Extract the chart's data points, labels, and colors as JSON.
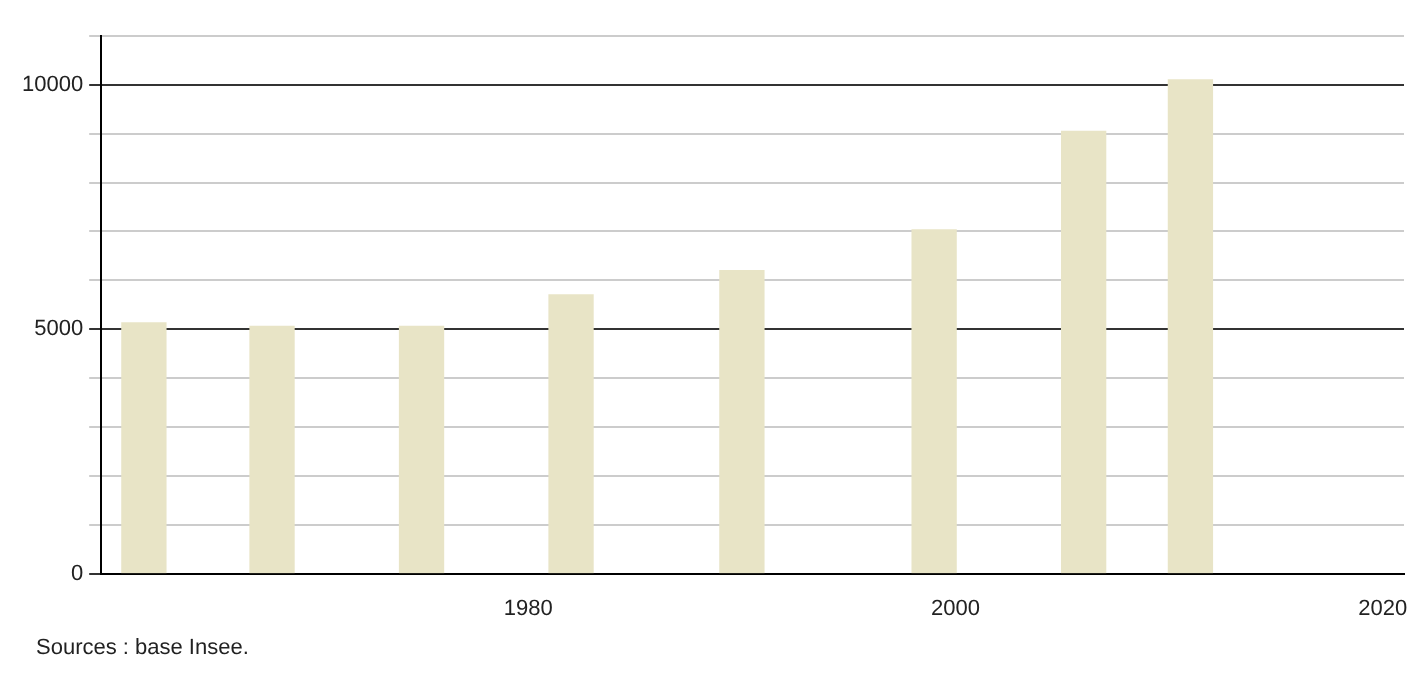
{
  "chart_data": {
    "type": "bar",
    "x": [
      1962,
      1968,
      1975,
      1982,
      1990,
      1999,
      2006,
      2011
    ],
    "values": [
      5130,
      5060,
      5060,
      5700,
      6200,
      7030,
      9050,
      10100
    ],
    "color": "#e8e4c6",
    "xlim": [
      1960,
      2021
    ],
    "xticks": [
      1980,
      2000,
      2020
    ],
    "ylim": [
      0,
      11000
    ],
    "yticks": [
      0,
      {
        "value": 1000,
        "label": null
      },
      {
        "value": 2000,
        "label": null
      },
      {
        "value": 3000,
        "label": null
      },
      {
        "value": 4000,
        "label": null
      },
      5000,
      {
        "value": 6000,
        "label": null
      },
      {
        "value": 7000,
        "label": null
      },
      {
        "value": 8000,
        "label": null
      },
      {
        "value": 9000,
        "label": null
      },
      10000,
      {
        "value": 11000,
        "label": null
      }
    ],
    "grid": "y",
    "annotations": [
      "Sources : base Insee."
    ]
  }
}
